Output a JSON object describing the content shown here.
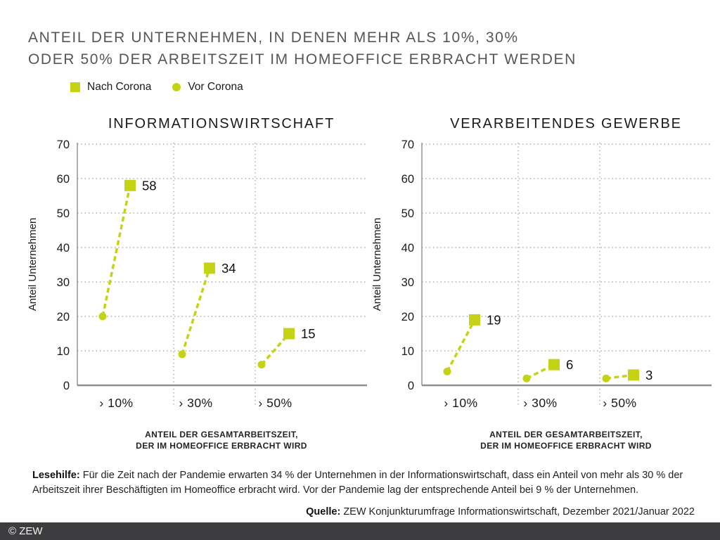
{
  "header": {
    "title_line1": "ANTEIL DER UNTERNEHMEN, IN DENEN MEHR ALS 10%, 30%",
    "title_line2": "ODER 50% DER ARBEITSZEIT IM HOMEOFFICE ERBRACHT WERDEN"
  },
  "legend": {
    "nach_label": "Nach Corona",
    "vor_label": "Vor Corona"
  },
  "colors": {
    "accent_green": "#c4d414",
    "title_gray": "#55565a",
    "text_dark": "#1a1a1a",
    "grid_gray": "#9b9b9b",
    "axis_gray": "#8f8f8f",
    "footer_bg": "#3d3d3f",
    "footer_text": "#f2f2f2"
  },
  "chart_data": [
    {
      "type": "scatter",
      "title": "INFORMATIONSWIRTSCHAFT",
      "categories": [
        "› 10%",
        "› 30%",
        "› 50%"
      ],
      "series": [
        {
          "name": "Nach Corona",
          "marker": "square",
          "values": [
            58,
            34,
            15
          ],
          "data_labels": [
            "58",
            "34",
            "15"
          ]
        },
        {
          "name": "Vor Corona",
          "marker": "circle",
          "values": [
            20,
            9,
            6
          ]
        }
      ],
      "ylabel": "Anteil Unternehmen",
      "xlabel_lines": [
        "ANTEIL DER GESAMTARBEITSZEIT,",
        "DER IM HOMEOFFICE ERBRACHT WIRD"
      ],
      "ylim": [
        0,
        70
      ],
      "ytick_step": 10,
      "grid": true,
      "legend_position": "top-left"
    },
    {
      "type": "scatter",
      "title": "VERARBEITENDES GEWERBE",
      "categories": [
        "› 10%",
        "› 30%",
        "› 50%"
      ],
      "series": [
        {
          "name": "Nach Corona",
          "marker": "square",
          "values": [
            19,
            6,
            3
          ],
          "data_labels": [
            "19",
            "6",
            "3"
          ]
        },
        {
          "name": "Vor Corona",
          "marker": "circle",
          "values": [
            4,
            2,
            2
          ]
        }
      ],
      "ylabel": "Anteil Unternehmen",
      "xlabel_lines": [
        "ANTEIL DER GESAMTARBEITSZEIT,",
        "DER IM HOMEOFFICE ERBRACHT WIRD"
      ],
      "ylim": [
        0,
        70
      ],
      "ytick_step": 10,
      "grid": true,
      "legend_position": "top-left"
    }
  ],
  "lesehilfe": {
    "label": "Lesehilfe:",
    "text": "Für die Zeit nach der Pandemie erwarten 34 % der Unternehmen in der Informationswirtschaft, dass ein Anteil von mehr als 30 % der Arbeitszeit ihrer Beschäftigten im Homeoffice erbracht wird. Vor der Pandemie lag der entsprechende Anteil bei 9 % der Unternehmen."
  },
  "quelle": {
    "label": "Quelle:",
    "text": "ZEW Konjunkturumfrage Informationswirtschaft, Dezember 2021/Januar 2022"
  },
  "footer": {
    "copyright": "© ZEW"
  }
}
